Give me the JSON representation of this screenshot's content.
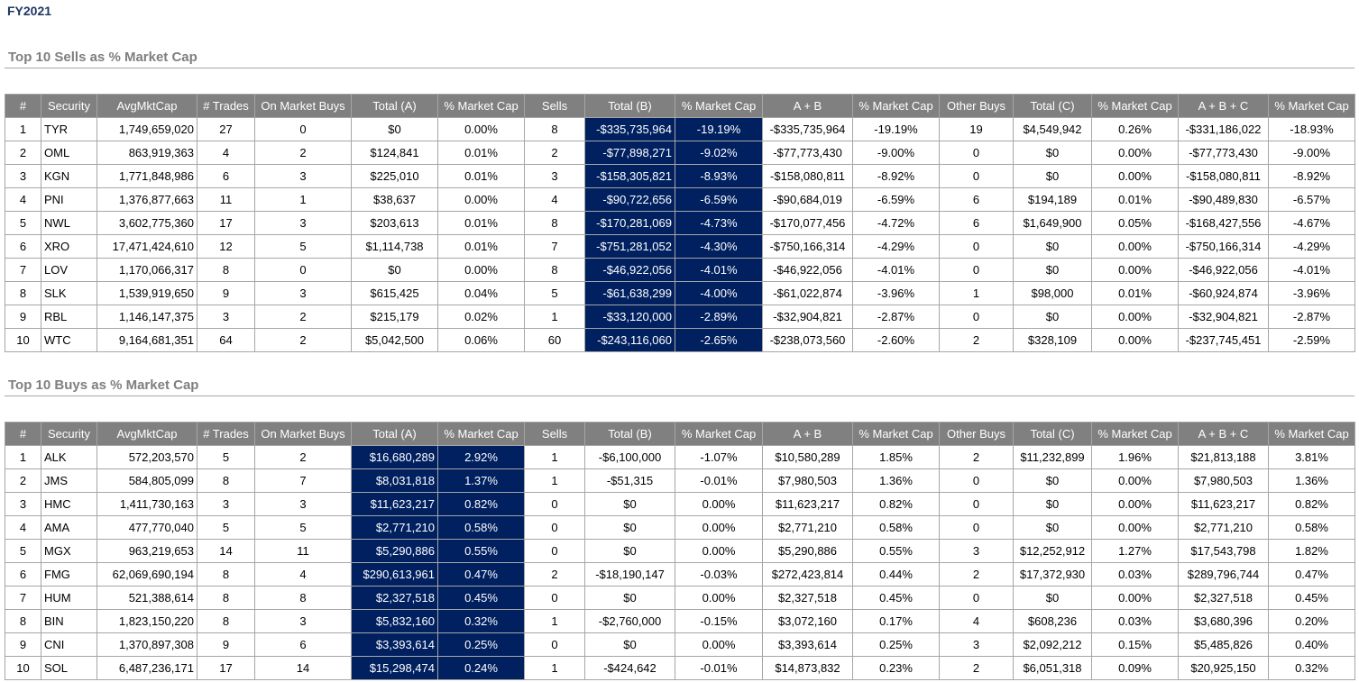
{
  "title": "FY2021",
  "tables": [
    {
      "heading": "Top 10 Sells as % Market Cap",
      "columns": [
        "#",
        "Security",
        "AvgMktCap",
        "# Trades",
        "On Market Buys",
        "Total (A)",
        "% Market Cap",
        "Sells",
        "Total (B)",
        "% Market Cap",
        "A + B",
        "% Market Cap",
        "Other Buys",
        "Total (C)",
        "% Market Cap",
        "A + B + C",
        "% Market Cap"
      ],
      "rows": [
        [
          "1",
          "TYR",
          "1,749,659,020",
          "27",
          "0",
          "$0",
          "0.00%",
          "8",
          "-$335,735,964",
          "-19.19%",
          "-$335,735,964",
          "-19.19%",
          "19",
          "$4,549,942",
          "0.26%",
          "-$331,186,022",
          "-18.93%"
        ],
        [
          "2",
          "OML",
          "863,919,363",
          "4",
          "2",
          "$124,841",
          "0.01%",
          "2",
          "-$77,898,271",
          "-9.02%",
          "-$77,773,430",
          "-9.00%",
          "0",
          "$0",
          "0.00%",
          "-$77,773,430",
          "-9.00%"
        ],
        [
          "3",
          "KGN",
          "1,771,848,986",
          "6",
          "3",
          "$225,010",
          "0.01%",
          "3",
          "-$158,305,821",
          "-8.93%",
          "-$158,080,811",
          "-8.92%",
          "0",
          "$0",
          "0.00%",
          "-$158,080,811",
          "-8.92%"
        ],
        [
          "4",
          "PNI",
          "1,376,877,663",
          "11",
          "1",
          "$38,637",
          "0.00%",
          "4",
          "-$90,722,656",
          "-6.59%",
          "-$90,684,019",
          "-6.59%",
          "6",
          "$194,189",
          "0.01%",
          "-$90,489,830",
          "-6.57%"
        ],
        [
          "5",
          "NWL",
          "3,602,775,360",
          "17",
          "3",
          "$203,613",
          "0.01%",
          "8",
          "-$170,281,069",
          "-4.73%",
          "-$170,077,456",
          "-4.72%",
          "6",
          "$1,649,900",
          "0.05%",
          "-$168,427,556",
          "-4.67%"
        ],
        [
          "6",
          "XRO",
          "17,471,424,610",
          "12",
          "5",
          "$1,114,738",
          "0.01%",
          "7",
          "-$751,281,052",
          "-4.30%",
          "-$750,166,314",
          "-4.29%",
          "0",
          "$0",
          "0.00%",
          "-$750,166,314",
          "-4.29%"
        ],
        [
          "7",
          "LOV",
          "1,170,066,317",
          "8",
          "0",
          "$0",
          "0.00%",
          "8",
          "-$46,922,056",
          "-4.01%",
          "-$46,922,056",
          "-4.01%",
          "0",
          "$0",
          "0.00%",
          "-$46,922,056",
          "-4.01%"
        ],
        [
          "8",
          "SLK",
          "1,539,919,650",
          "9",
          "3",
          "$615,425",
          "0.04%",
          "5",
          "-$61,638,299",
          "-4.00%",
          "-$61,022,874",
          "-3.96%",
          "1",
          "$98,000",
          "0.01%",
          "-$60,924,874",
          "-3.96%"
        ],
        [
          "9",
          "RBL",
          "1,146,147,375",
          "3",
          "2",
          "$215,179",
          "0.02%",
          "1",
          "-$33,120,000",
          "-2.89%",
          "-$32,904,821",
          "-2.87%",
          "0",
          "$0",
          "0.00%",
          "-$32,904,821",
          "-2.87%"
        ],
        [
          "10",
          "WTC",
          "9,164,681,351",
          "64",
          "2",
          "$5,042,500",
          "0.06%",
          "60",
          "-$243,116,060",
          "-2.65%",
          "-$238,073,560",
          "-2.60%",
          "2",
          "$328,109",
          "0.00%",
          "-$237,745,451",
          "-2.59%"
        ]
      ]
    },
    {
      "heading": "Top 10 Buys as % Market Cap",
      "columns": [
        "#",
        "Security",
        "AvgMktCap",
        "# Trades",
        "On Market Buys",
        "Total (A)",
        "% Market Cap",
        "Sells",
        "Total (B)",
        "% Market Cap",
        "A + B",
        "% Market Cap",
        "Other Buys",
        "Total (C)",
        "% Market Cap",
        "A + B + C",
        "% Market Cap"
      ],
      "rows": [
        [
          "1",
          "ALK",
          "572,203,570",
          "5",
          "2",
          "$16,680,289",
          "2.92%",
          "1",
          "-$6,100,000",
          "-1.07%",
          "$10,580,289",
          "1.85%",
          "2",
          "$11,232,899",
          "1.96%",
          "$21,813,188",
          "3.81%"
        ],
        [
          "2",
          "JMS",
          "584,805,099",
          "8",
          "7",
          "$8,031,818",
          "1.37%",
          "1",
          "-$51,315",
          "-0.01%",
          "$7,980,503",
          "1.36%",
          "0",
          "$0",
          "0.00%",
          "$7,980,503",
          "1.36%"
        ],
        [
          "3",
          "HMC",
          "1,411,730,163",
          "3",
          "3",
          "$11,623,217",
          "0.82%",
          "0",
          "$0",
          "0.00%",
          "$11,623,217",
          "0.82%",
          "0",
          "$0",
          "0.00%",
          "$11,623,217",
          "0.82%"
        ],
        [
          "4",
          "AMA",
          "477,770,040",
          "5",
          "5",
          "$2,771,210",
          "0.58%",
          "0",
          "$0",
          "0.00%",
          "$2,771,210",
          "0.58%",
          "0",
          "$0",
          "0.00%",
          "$2,771,210",
          "0.58%"
        ],
        [
          "5",
          "MGX",
          "963,219,653",
          "14",
          "11",
          "$5,290,886",
          "0.55%",
          "0",
          "$0",
          "0.00%",
          "$5,290,886",
          "0.55%",
          "3",
          "$12,252,912",
          "1.27%",
          "$17,543,798",
          "1.82%"
        ],
        [
          "6",
          "FMG",
          "62,069,690,194",
          "8",
          "4",
          "$290,613,961",
          "0.47%",
          "2",
          "-$18,190,147",
          "-0.03%",
          "$272,423,814",
          "0.44%",
          "2",
          "$17,372,930",
          "0.03%",
          "$289,796,744",
          "0.47%"
        ],
        [
          "7",
          "HUM",
          "521,388,614",
          "8",
          "8",
          "$2,327,518",
          "0.45%",
          "0",
          "$0",
          "0.00%",
          "$2,327,518",
          "0.45%",
          "0",
          "$0",
          "0.00%",
          "$2,327,518",
          "0.45%"
        ],
        [
          "8",
          "BIN",
          "1,823,150,220",
          "8",
          "3",
          "$5,832,160",
          "0.32%",
          "1",
          "-$2,760,000",
          "-0.15%",
          "$3,072,160",
          "0.17%",
          "4",
          "$608,236",
          "0.03%",
          "$3,680,396",
          "0.20%"
        ],
        [
          "9",
          "CNI",
          "1,370,897,308",
          "9",
          "6",
          "$3,393,614",
          "0.25%",
          "0",
          "$0",
          "0.00%",
          "$3,393,614",
          "0.25%",
          "3",
          "$2,092,212",
          "0.15%",
          "$5,485,826",
          "0.40%"
        ],
        [
          "10",
          "SOL",
          "6,487,236,171",
          "17",
          "14",
          "$15,298,474",
          "0.24%",
          "1",
          "-$424,642",
          "-0.01%",
          "$14,873,832",
          "0.23%",
          "2",
          "$6,051,318",
          "0.09%",
          "$20,925,150",
          "0.32%"
        ]
      ]
    }
  ]
}
